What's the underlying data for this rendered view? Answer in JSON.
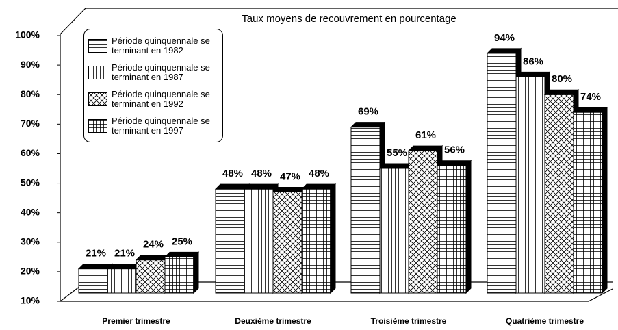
{
  "chart_data": {
    "type": "bar3d",
    "title": "Taux moyens de recouvrement en pourcentage",
    "categories": [
      "Premier trimestre",
      "Deuxième trimestre",
      "Troisième trimestre",
      "Quatrième trimestre"
    ],
    "series": [
      {
        "name": "Période quinquennale se terminant en 1982",
        "color": "#000000",
        "pattern": "horizontal",
        "values": [
          21,
          48,
          69,
          94
        ],
        "value_labels": [
          "21%",
          "48%",
          "69%",
          "94%"
        ]
      },
      {
        "name": "Période quinquennale se terminant en 1987",
        "color": "#000000",
        "pattern": "vertical",
        "values": [
          21,
          48,
          55,
          86
        ],
        "value_labels": [
          "21%",
          "48%",
          "55%",
          "86%"
        ]
      },
      {
        "name": "Période quinquennale se terminant en 1992",
        "color": "#000000",
        "pattern": "cross",
        "values": [
          24,
          47,
          61,
          80
        ],
        "value_labels": [
          "24%",
          "47%",
          "61%",
          "80%"
        ]
      },
      {
        "name": "Période quinquennale se terminant en 1997",
        "color": "#000000",
        "pattern": "grid",
        "values": [
          25,
          48,
          56,
          74
        ],
        "value_labels": [
          "25%",
          "48%",
          "56%",
          "74%"
        ]
      }
    ],
    "ylim": [
      10,
      100
    ],
    "yticks": [
      {
        "value": 10,
        "label": "10%"
      },
      {
        "value": 20,
        "label": "20%"
      },
      {
        "value": 30,
        "label": "30%"
      },
      {
        "value": 40,
        "label": "40%"
      },
      {
        "value": 50,
        "label": "50%"
      },
      {
        "value": 60,
        "label": "60%"
      },
      {
        "value": 70,
        "label": "70%"
      },
      {
        "value": 80,
        "label": "80%"
      },
      {
        "value": 90,
        "label": "90%"
      },
      {
        "value": 100,
        "label": "100%"
      }
    ],
    "legend": "upper left"
  }
}
